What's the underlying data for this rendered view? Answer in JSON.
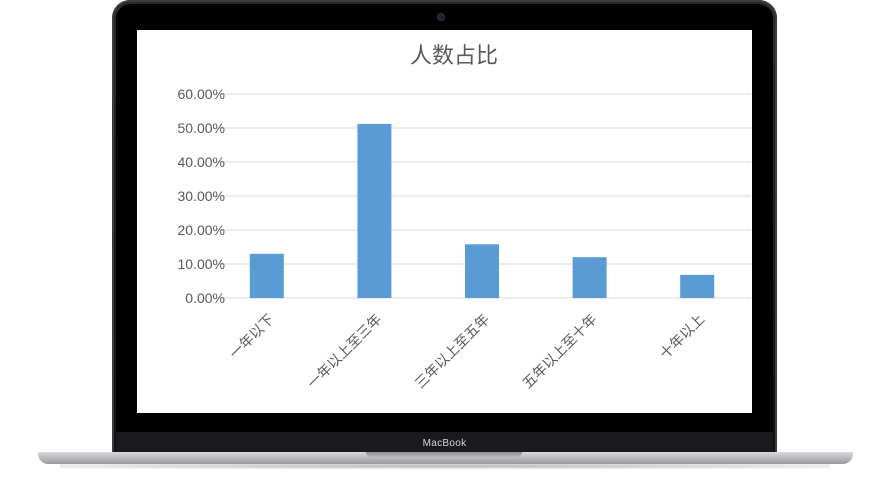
{
  "device": {
    "brand_label": "MacBook"
  },
  "chart_data": {
    "type": "bar",
    "title": "人数占比",
    "categories": [
      "一年以下",
      "一年以上至三年",
      "三年以上至五年",
      "五年以上至十年",
      "十年以上"
    ],
    "values": [
      0.13,
      0.512,
      0.158,
      0.12,
      0.068
    ],
    "value_format": "percent",
    "ylim": [
      0,
      0.6
    ],
    "yticks": [
      "0.00%",
      "10.00%",
      "20.00%",
      "30.00%",
      "40.00%",
      "50.00%",
      "60.00%"
    ],
    "grid": true,
    "legend": "none",
    "bar_color": "#5b9bd5",
    "grid_color": "#d9d9d9",
    "text_color": "#595959"
  }
}
